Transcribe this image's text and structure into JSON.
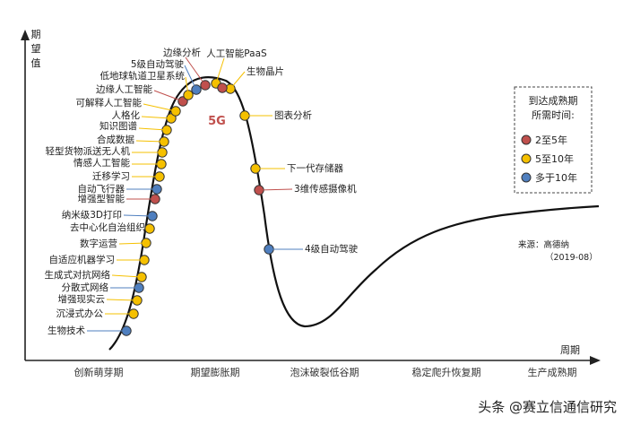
{
  "chart_data": {
    "type": "line",
    "subtype": "hype-cycle",
    "y_axis_label": "期望值",
    "x_axis_label": "周期",
    "phases": [
      "创新萌芽期",
      "期望膨胀期",
      "泡沫破裂低谷期",
      "稳定爬升恢复期",
      "生产成熟期"
    ],
    "legend": {
      "title": "到达成熟期所需时间:",
      "title_lines": [
        "到达成熟期",
        "所需时间:"
      ],
      "items": [
        {
          "key": "2-5",
          "label": "2至5年",
          "color": "#c0504d"
        },
        {
          "key": "5-10",
          "label": "5至10年",
          "color": "#f5c000"
        },
        {
          "key": "10+",
          "label": "多于10年",
          "color": "#4f7fbf"
        }
      ]
    },
    "source_lines": [
      "来源：高德纳",
      "（2019-08）"
    ],
    "highlight": {
      "label": "5G"
    },
    "technologies": [
      {
        "name": "生物技术",
        "maturity": "10+"
      },
      {
        "name": "沉浸式办公",
        "maturity": "5-10"
      },
      {
        "name": "增强现实云",
        "maturity": "5-10"
      },
      {
        "name": "分散式网络",
        "maturity": "10+"
      },
      {
        "name": "生成式对抗网络",
        "maturity": "5-10"
      },
      {
        "name": "自适应机器学习",
        "maturity": "5-10"
      },
      {
        "name": "数字运营",
        "maturity": "5-10"
      },
      {
        "name": "去中心化自治组织",
        "maturity": "5-10"
      },
      {
        "name": "纳米级3D打印",
        "maturity": "10+"
      },
      {
        "name": "增强型智能",
        "maturity": "2-5"
      },
      {
        "name": "自动飞行器",
        "maturity": "10+"
      },
      {
        "name": "迁移学习",
        "maturity": "5-10"
      },
      {
        "name": "情感人工智能",
        "maturity": "5-10"
      },
      {
        "name": "轻型货物派送无人机",
        "maturity": "5-10"
      },
      {
        "name": "合成数据",
        "maturity": "5-10"
      },
      {
        "name": "知识图谱",
        "maturity": "5-10"
      },
      {
        "name": "人格化",
        "maturity": "5-10"
      },
      {
        "name": "可解释人工智能",
        "maturity": "5-10"
      },
      {
        "name": "边缘人工智能",
        "maturity": "2-5"
      },
      {
        "name": "低地球轨道卫星系统",
        "maturity": "5-10"
      },
      {
        "name": "5级自动驾驶",
        "maturity": "10+"
      },
      {
        "name": "边缘分析",
        "maturity": "2-5"
      },
      {
        "name": "人工智能PaaS",
        "maturity": "5-10"
      },
      {
        "name": "生物晶片",
        "maturity": "5-10"
      },
      {
        "name": "5G",
        "maturity": "2-5"
      },
      {
        "name": "图表分析",
        "maturity": "5-10"
      },
      {
        "name": "下一代存储器",
        "maturity": "5-10"
      },
      {
        "name": "3维传感摄像机",
        "maturity": "2-5"
      },
      {
        "name": "4级自动驾驶",
        "maturity": "10+"
      }
    ]
  },
  "watermark": "头条 @赛立信通信研究"
}
